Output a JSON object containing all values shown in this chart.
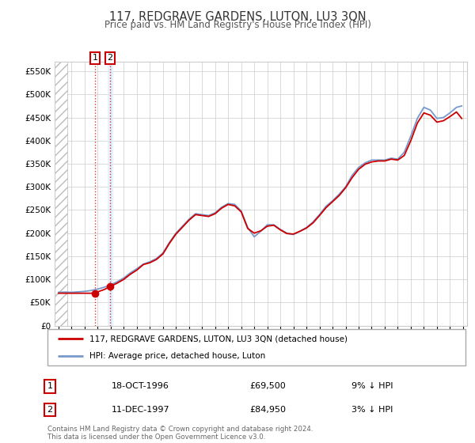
{
  "title": "117, REDGRAVE GARDENS, LUTON, LU3 3QN",
  "subtitle": "Price paid vs. HM Land Registry's House Price Index (HPI)",
  "ylabel_ticks": [
    "£0",
    "£50K",
    "£100K",
    "£150K",
    "£200K",
    "£250K",
    "£300K",
    "£350K",
    "£400K",
    "£450K",
    "£500K",
    "£550K"
  ],
  "ytick_values": [
    0,
    50000,
    100000,
    150000,
    200000,
    250000,
    300000,
    350000,
    400000,
    450000,
    500000,
    550000
  ],
  "ylim": [
    0,
    570000
  ],
  "xlim_start": 1993.7,
  "xlim_end": 2025.3,
  "hpi_line_color": "#7799cc",
  "price_line_color": "#cc0000",
  "sale1_price": 69500,
  "sale1_x": 1996.79,
  "sale2_price": 84950,
  "sale2_x": 1997.95,
  "hatch_end_x": 1994.7,
  "shade1_color": "#ddeeff",
  "background_color": "#ffffff",
  "grid_color": "#cccccc",
  "legend_line1": "117, REDGRAVE GARDENS, LUTON, LU3 3QN (detached house)",
  "legend_line2": "HPI: Average price, detached house, Luton",
  "footer": "Contains HM Land Registry data © Crown copyright and database right 2024.\nThis data is licensed under the Open Government Licence v3.0.",
  "table_rows": [
    [
      "1",
      "18-OCT-1996",
      "£69,500",
      "9% ↓ HPI"
    ],
    [
      "2",
      "11-DEC-1997",
      "£84,950",
      "3% ↓ HPI"
    ]
  ],
  "hpi_data_x": [
    1994.0,
    1994.5,
    1995.0,
    1995.5,
    1996.0,
    1996.5,
    1997.0,
    1997.5,
    1998.0,
    1998.5,
    1999.0,
    1999.5,
    2000.0,
    2000.5,
    2001.0,
    2001.5,
    2002.0,
    2002.5,
    2003.0,
    2003.5,
    2004.0,
    2004.5,
    2005.0,
    2005.5,
    2006.0,
    2006.5,
    2007.0,
    2007.5,
    2008.0,
    2008.5,
    2009.0,
    2009.5,
    2010.0,
    2010.5,
    2011.0,
    2011.5,
    2012.0,
    2012.5,
    2013.0,
    2013.5,
    2014.0,
    2014.5,
    2015.0,
    2015.5,
    2016.0,
    2016.5,
    2017.0,
    2017.5,
    2018.0,
    2018.5,
    2019.0,
    2019.5,
    2020.0,
    2020.5,
    2021.0,
    2021.5,
    2022.0,
    2022.5,
    2023.0,
    2023.5,
    2024.0,
    2024.5,
    2024.9
  ],
  "hpi_data_y": [
    72000,
    72500,
    72000,
    73000,
    74000,
    76000,
    79000,
    83000,
    88000,
    95000,
    103000,
    114000,
    123000,
    133000,
    138000,
    145000,
    157000,
    180000,
    200000,
    215000,
    230000,
    242000,
    240000,
    238000,
    244000,
    256000,
    264000,
    262000,
    248000,
    212000,
    192000,
    204000,
    218000,
    218000,
    208000,
    200000,
    197000,
    204000,
    212000,
    224000,
    240000,
    258000,
    270000,
    284000,
    300000,
    325000,
    342000,
    352000,
    358000,
    358000,
    358000,
    362000,
    360000,
    375000,
    410000,
    448000,
    472000,
    466000,
    448000,
    450000,
    460000,
    472000,
    475000
  ],
  "price_data_x": [
    1994.0,
    1994.5,
    1995.0,
    1995.5,
    1996.0,
    1996.5,
    1997.0,
    1997.5,
    1998.0,
    1998.5,
    1999.0,
    1999.5,
    2000.0,
    2000.5,
    2001.0,
    2001.5,
    2002.0,
    2002.5,
    2003.0,
    2003.5,
    2004.0,
    2004.5,
    2005.0,
    2005.5,
    2006.0,
    2006.5,
    2007.0,
    2007.5,
    2008.0,
    2008.5,
    2009.0,
    2009.5,
    2010.0,
    2010.5,
    2011.0,
    2011.5,
    2012.0,
    2012.5,
    2013.0,
    2013.5,
    2014.0,
    2014.5,
    2015.0,
    2015.5,
    2016.0,
    2016.5,
    2017.0,
    2017.5,
    2018.0,
    2018.5,
    2019.0,
    2019.5,
    2020.0,
    2020.5,
    2021.0,
    2021.5,
    2022.0,
    2022.5,
    2023.0,
    2023.5,
    2024.0,
    2024.5,
    2024.9
  ],
  "price_data_y": [
    70000,
    70000,
    70000,
    70000,
    70000,
    70000,
    73000,
    78000,
    85000,
    92000,
    100000,
    111000,
    120000,
    132000,
    136000,
    143000,
    155000,
    178000,
    198000,
    213000,
    228000,
    240000,
    238000,
    236000,
    242000,
    254000,
    262000,
    259000,
    246000,
    210000,
    200000,
    205000,
    215000,
    217000,
    207000,
    199000,
    198000,
    204000,
    211000,
    222000,
    238000,
    255000,
    268000,
    281000,
    298000,
    320000,
    338000,
    349000,
    354000,
    356000,
    356000,
    360000,
    358000,
    368000,
    400000,
    438000,
    460000,
    455000,
    440000,
    443000,
    452000,
    462000,
    448000
  ]
}
